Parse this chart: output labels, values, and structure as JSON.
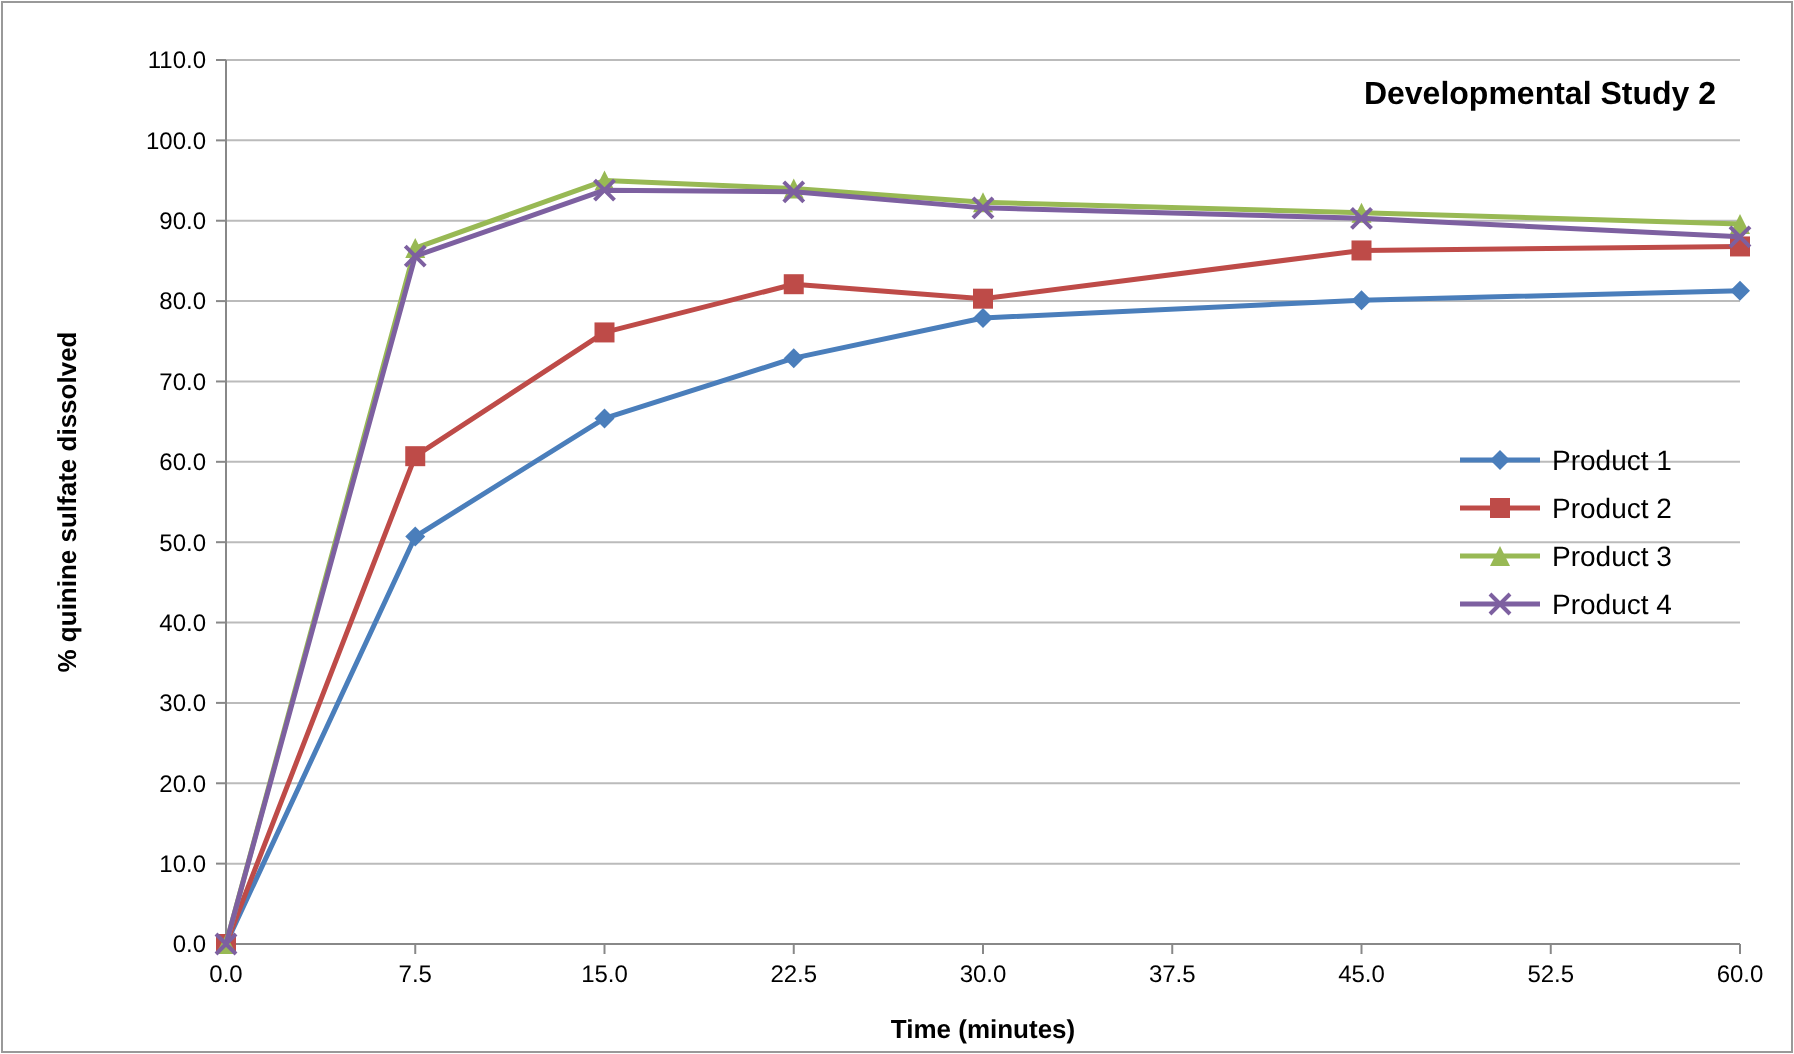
{
  "chart_data": {
    "type": "line",
    "title": "Developmental Study 2",
    "xlabel": "Time (minutes)",
    "ylabel": "% quinine sulfate dissolved",
    "x": [
      0,
      7.5,
      15,
      22.5,
      30,
      45,
      60
    ],
    "xlim": [
      0,
      60
    ],
    "xticks": [
      {
        "value": 0,
        "label": "0.0"
      },
      {
        "value": 7.5,
        "label": "7.5"
      },
      {
        "value": 15,
        "label": "15.0"
      },
      {
        "value": 22.5,
        "label": "22.5"
      },
      {
        "value": 30,
        "label": "30.0"
      },
      {
        "value": 37.5,
        "label": "37.5"
      },
      {
        "value": 45,
        "label": "45.0"
      },
      {
        "value": 52.5,
        "label": "52.5"
      },
      {
        "value": 60,
        "label": "60.0"
      }
    ],
    "ylim": [
      0,
      110
    ],
    "yticks": [
      {
        "value": 0,
        "label": "0.0"
      },
      {
        "value": 10,
        "label": "10.0"
      },
      {
        "value": 20,
        "label": "20.0"
      },
      {
        "value": 30,
        "label": "30.0"
      },
      {
        "value": 40,
        "label": "40.0"
      },
      {
        "value": 50,
        "label": "50.0"
      },
      {
        "value": 60,
        "label": "60.0"
      },
      {
        "value": 70,
        "label": "70.0"
      },
      {
        "value": 80,
        "label": "80.0"
      },
      {
        "value": 90,
        "label": "90.0"
      },
      {
        "value": 100,
        "label": "100.0"
      },
      {
        "value": 110,
        "label": "110.0"
      }
    ],
    "grid": "y",
    "legend": "right",
    "line_style": "solid",
    "series": [
      {
        "name": "Product 1",
        "color": "#4a7ebb",
        "marker": "diamond",
        "values": [
          0,
          50.7,
          65.4,
          72.9,
          77.9,
          80.1,
          81.3
        ]
      },
      {
        "name": "Product 2",
        "color": "#be4b48",
        "marker": "square",
        "values": [
          0,
          60.7,
          76.1,
          82.1,
          80.3,
          86.3,
          86.8
        ]
      },
      {
        "name": "Product 3",
        "color": "#98b954",
        "marker": "triangle",
        "values": [
          0,
          86.6,
          95,
          94,
          92.3,
          91,
          89.6
        ]
      },
      {
        "name": "Product 4",
        "color": "#7d60a0",
        "marker": "cross",
        "values": [
          0,
          85.6,
          93.8,
          93.6,
          91.6,
          90.3,
          88
        ]
      }
    ]
  }
}
